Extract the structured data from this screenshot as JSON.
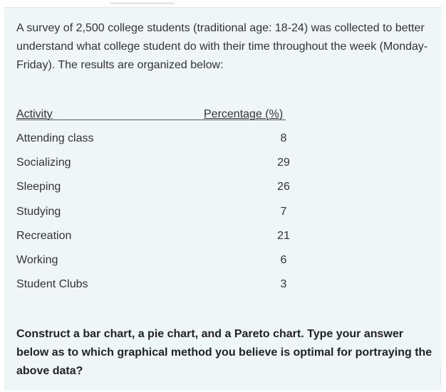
{
  "intro_text": "A survey of 2,500 college students (traditional age: 18-24) was collected to better understand what college student do with their time throughout the week (Monday-Friday).  The results are organized below:",
  "table": {
    "header_activity": "Activity",
    "header_percentage": "Percentage (%)",
    "rows": [
      {
        "activity": "Attending class",
        "percentage": "8"
      },
      {
        "activity": "Socializing",
        "percentage": "29"
      },
      {
        "activity": "Sleeping",
        "percentage": "26"
      },
      {
        "activity": "Studying",
        "percentage": "7"
      },
      {
        "activity": "Recreation",
        "percentage": "21"
      },
      {
        "activity": "Working",
        "percentage": "6"
      },
      {
        "activity": "Student Clubs",
        "percentage": "3"
      }
    ]
  },
  "question_text": "Construct a bar chart, a pie chart, and a Pareto chart.  Type your answer below as to which graphical method you believe is optimal for portraying the above data?",
  "colors": {
    "panel_background": "#eef6f8",
    "text": "#333333"
  }
}
